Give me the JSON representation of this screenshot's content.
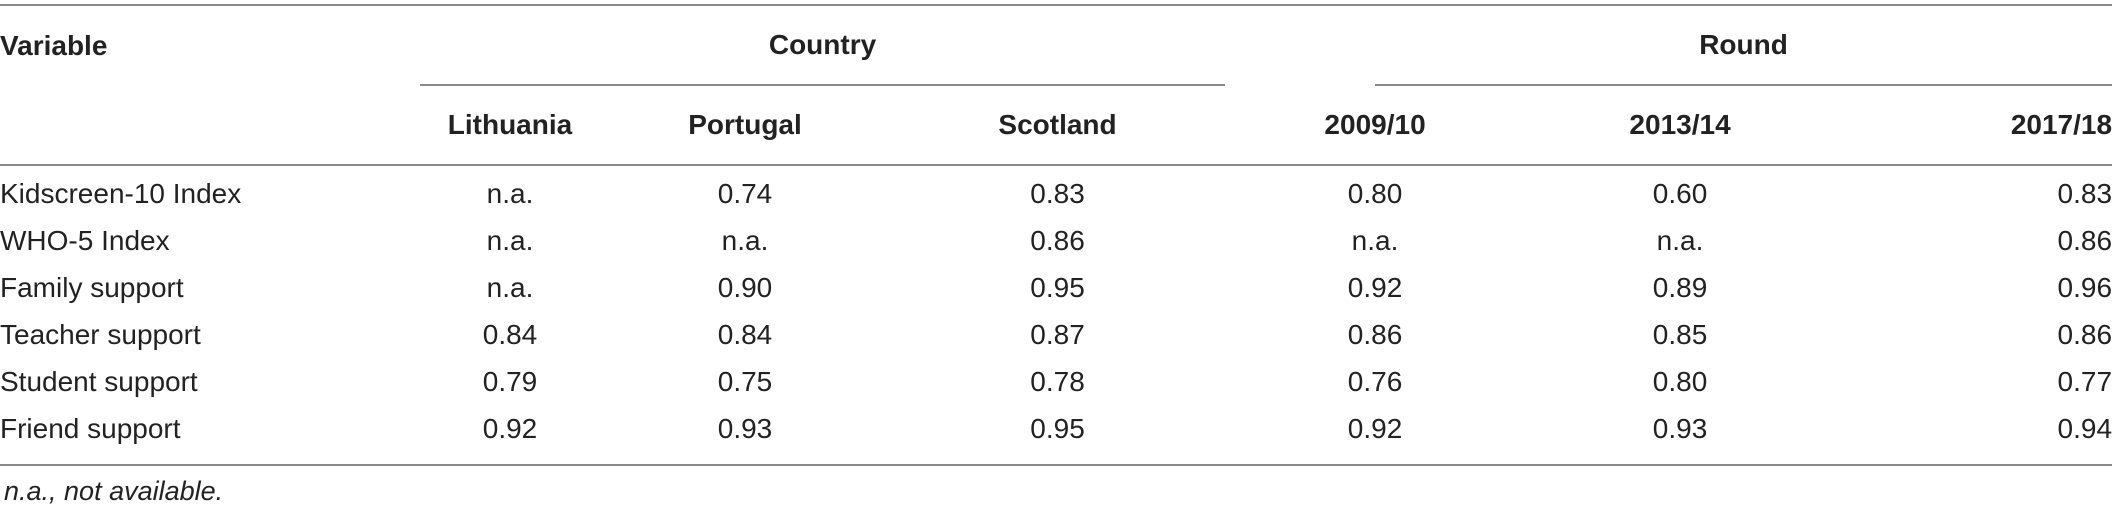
{
  "headers": {
    "variable": "Variable",
    "country_group": "Country",
    "round_group": "Round",
    "columns": [
      "Lithuania",
      "Portugal",
      "Scotland",
      "2009/10",
      "2013/14",
      "2017/18"
    ]
  },
  "rows": [
    {
      "label": "Kidscreen-10 Index",
      "values": [
        "n.a.",
        "0.74",
        "0.83",
        "0.80",
        "0.60",
        "0.83"
      ]
    },
    {
      "label": "WHO-5 Index",
      "values": [
        "n.a.",
        "n.a.",
        "0.86",
        "n.a.",
        "n.a.",
        "0.86"
      ]
    },
    {
      "label": "Family support",
      "values": [
        "n.a.",
        "0.90",
        "0.95",
        "0.92",
        "0.89",
        "0.96"
      ]
    },
    {
      "label": "Teacher support",
      "values": [
        "0.84",
        "0.84",
        "0.87",
        "0.86",
        "0.85",
        "0.86"
      ]
    },
    {
      "label": "Student support",
      "values": [
        "0.79",
        "0.75",
        "0.78",
        "0.76",
        "0.80",
        "0.77"
      ]
    },
    {
      "label": "Friend support",
      "values": [
        "0.92",
        "0.93",
        "0.95",
        "0.92",
        "0.93",
        "0.94"
      ]
    }
  ],
  "footnote": "n.a., not available."
}
